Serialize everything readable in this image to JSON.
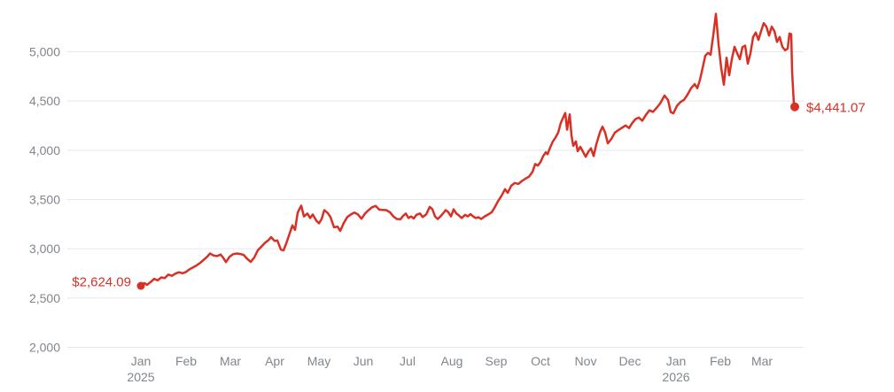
{
  "chart_data": {
    "type": "line",
    "start_label": "$2,624.09",
    "end_label": "$4,441.07",
    "start_value": 2624.09,
    "end_value": 4441.07,
    "line_color": "#d93025",
    "grid_color": "#e7e7e7",
    "axis_text_color": "#80868b",
    "background_color": "#ffffff",
    "ylim": [
      2000,
      5000
    ],
    "grid": true,
    "legend_position": "none",
    "y_ticks": [
      {
        "value": 5000,
        "label": "5,000"
      },
      {
        "value": 4500,
        "label": "4,500"
      },
      {
        "value": 4000,
        "label": "4,000"
      },
      {
        "value": 3500,
        "label": "3,500"
      },
      {
        "value": 3000,
        "label": "3,000"
      },
      {
        "value": 2500,
        "label": "2,500"
      },
      {
        "value": 2000,
        "label": "2,000"
      }
    ],
    "x_ticks": [
      {
        "t": 0,
        "label": "Jan",
        "year": "2025"
      },
      {
        "t": 51,
        "label": "Feb"
      },
      {
        "t": 101,
        "label": "Mar"
      },
      {
        "t": 151,
        "label": "Apr"
      },
      {
        "t": 201,
        "label": "May"
      },
      {
        "t": 251,
        "label": "Jun"
      },
      {
        "t": 301,
        "label": "Jul"
      },
      {
        "t": 351,
        "label": "Aug"
      },
      {
        "t": 401,
        "label": "Sep"
      },
      {
        "t": 451,
        "label": "Oct"
      },
      {
        "t": 502,
        "label": "Nov"
      },
      {
        "t": 552,
        "label": "Dec"
      },
      {
        "t": 604,
        "label": "Jan",
        "year": "2026"
      },
      {
        "t": 654,
        "label": "Feb"
      },
      {
        "t": 701,
        "label": "Mar"
      }
    ],
    "t_range": [
      0,
      738
    ],
    "points": [
      [
        0,
        2624.09
      ],
      [
        4,
        2652
      ],
      [
        7,
        2634
      ],
      [
        11,
        2662
      ],
      [
        15,
        2695
      ],
      [
        19,
        2680
      ],
      [
        23,
        2710
      ],
      [
        27,
        2702
      ],
      [
        31,
        2738
      ],
      [
        35,
        2726
      ],
      [
        39,
        2748
      ],
      [
        43,
        2762
      ],
      [
        47,
        2752
      ],
      [
        51,
        2765
      ],
      [
        55,
        2792
      ],
      [
        59,
        2812
      ],
      [
        63,
        2832
      ],
      [
        67,
        2858
      ],
      [
        71,
        2888
      ],
      [
        75,
        2922
      ],
      [
        78,
        2952
      ],
      [
        82,
        2932
      ],
      [
        86,
        2926
      ],
      [
        90,
        2942
      ],
      [
        93,
        2908
      ],
      [
        96,
        2865
      ],
      [
        100,
        2918
      ],
      [
        104,
        2945
      ],
      [
        108,
        2952
      ],
      [
        112,
        2948
      ],
      [
        116,
        2938
      ],
      [
        120,
        2898
      ],
      [
        124,
        2868
      ],
      [
        128,
        2912
      ],
      [
        132,
        2985
      ],
      [
        136,
        3022
      ],
      [
        140,
        3060
      ],
      [
        144,
        3088
      ],
      [
        147,
        3118
      ],
      [
        151,
        3080
      ],
      [
        154,
        3085
      ],
      [
        158,
        2992
      ],
      [
        161,
        2984
      ],
      [
        164,
        3052
      ],
      [
        167,
        3132
      ],
      [
        171,
        3238
      ],
      [
        174,
        3192
      ],
      [
        177,
        3368
      ],
      [
        181,
        3438
      ],
      [
        184,
        3328
      ],
      [
        188,
        3358
      ],
      [
        191,
        3312
      ],
      [
        194,
        3348
      ],
      [
        198,
        3285
      ],
      [
        201,
        3258
      ],
      [
        204,
        3302
      ],
      [
        207,
        3392
      ],
      [
        211,
        3362
      ],
      [
        214,
        3322
      ],
      [
        218,
        3218
      ],
      [
        222,
        3225
      ],
      [
        225,
        3182
      ],
      [
        229,
        3262
      ],
      [
        233,
        3322
      ],
      [
        237,
        3348
      ],
      [
        241,
        3368
      ],
      [
        245,
        3348
      ],
      [
        249,
        3305
      ],
      [
        253,
        3358
      ],
      [
        257,
        3392
      ],
      [
        261,
        3422
      ],
      [
        265,
        3435
      ],
      [
        269,
        3398
      ],
      [
        273,
        3395
      ],
      [
        277,
        3392
      ],
      [
        281,
        3372
      ],
      [
        285,
        3328
      ],
      [
        289,
        3302
      ],
      [
        293,
        3300
      ],
      [
        296,
        3335
      ],
      [
        299,
        3358
      ],
      [
        302,
        3312
      ],
      [
        305,
        3328
      ],
      [
        308,
        3308
      ],
      [
        311,
        3345
      ],
      [
        315,
        3358
      ],
      [
        318,
        3322
      ],
      [
        322,
        3348
      ],
      [
        326,
        3425
      ],
      [
        329,
        3402
      ],
      [
        332,
        3328
      ],
      [
        335,
        3302
      ],
      [
        338,
        3328
      ],
      [
        341,
        3358
      ],
      [
        344,
        3392
      ],
      [
        347,
        3372
      ],
      [
        350,
        3328
      ],
      [
        353,
        3400
      ],
      [
        356,
        3358
      ],
      [
        359,
        3338
      ],
      [
        362,
        3312
      ],
      [
        366,
        3345
      ],
      [
        369,
        3328
      ],
      [
        372,
        3352
      ],
      [
        375,
        3328
      ],
      [
        378,
        3312
      ],
      [
        381,
        3320
      ],
      [
        384,
        3302
      ],
      [
        388,
        3328
      ],
      [
        392,
        3348
      ],
      [
        396,
        3372
      ],
      [
        399,
        3415
      ],
      [
        403,
        3482
      ],
      [
        407,
        3538
      ],
      [
        411,
        3605
      ],
      [
        414,
        3568
      ],
      [
        418,
        3640
      ],
      [
        422,
        3668
      ],
      [
        426,
        3658
      ],
      [
        430,
        3688
      ],
      [
        434,
        3712
      ],
      [
        438,
        3732
      ],
      [
        442,
        3780
      ],
      [
        445,
        3860
      ],
      [
        448,
        3845
      ],
      [
        451,
        3880
      ],
      [
        454,
        3940
      ],
      [
        457,
        3980
      ],
      [
        459,
        3960
      ],
      [
        462,
        4030
      ],
      [
        465,
        4090
      ],
      [
        468,
        4130
      ],
      [
        471,
        4180
      ],
      [
        474,
        4280
      ],
      [
        477,
        4340
      ],
      [
        479,
        4378
      ],
      [
        481,
        4210
      ],
      [
        484,
        4365
      ],
      [
        486,
        4150
      ],
      [
        488,
        4045
      ],
      [
        491,
        4090
      ],
      [
        493,
        3990
      ],
      [
        496,
        4035
      ],
      [
        499,
        3985
      ],
      [
        502,
        3935
      ],
      [
        505,
        3985
      ],
      [
        508,
        4020
      ],
      [
        511,
        3942
      ],
      [
        514,
        4060
      ],
      [
        518,
        4180
      ],
      [
        521,
        4240
      ],
      [
        524,
        4180
      ],
      [
        527,
        4070
      ],
      [
        531,
        4115
      ],
      [
        535,
        4180
      ],
      [
        539,
        4205
      ],
      [
        543,
        4228
      ],
      [
        547,
        4252
      ],
      [
        551,
        4225
      ],
      [
        554,
        4270
      ],
      [
        558,
        4315
      ],
      [
        562,
        4332
      ],
      [
        566,
        4300
      ],
      [
        570,
        4360
      ],
      [
        574,
        4405
      ],
      [
        578,
        4390
      ],
      [
        582,
        4430
      ],
      [
        586,
        4475
      ],
      [
        591,
        4555
      ],
      [
        595,
        4510
      ],
      [
        598,
        4388
      ],
      [
        601,
        4375
      ],
      [
        605,
        4450
      ],
      [
        609,
        4490
      ],
      [
        613,
        4512
      ],
      [
        617,
        4565
      ],
      [
        621,
        4630
      ],
      [
        625,
        4672
      ],
      [
        628,
        4630
      ],
      [
        631,
        4715
      ],
      [
        634,
        4835
      ],
      [
        637,
        4960
      ],
      [
        640,
        4988
      ],
      [
        643,
        4970
      ],
      [
        646,
        5165
      ],
      [
        649,
        5385
      ],
      [
        652,
        5075
      ],
      [
        655,
        4835
      ],
      [
        658,
        4665
      ],
      [
        661,
        4940
      ],
      [
        664,
        4762
      ],
      [
        667,
        4925
      ],
      [
        670,
        5050
      ],
      [
        673,
        4985
      ],
      [
        676,
        4925
      ],
      [
        679,
        5048
      ],
      [
        682,
        5062
      ],
      [
        685,
        4880
      ],
      [
        688,
        4985
      ],
      [
        691,
        5150
      ],
      [
        694,
        5195
      ],
      [
        697,
        5120
      ],
      [
        700,
        5210
      ],
      [
        703,
        5290
      ],
      [
        706,
        5255
      ],
      [
        709,
        5165
      ],
      [
        712,
        5255
      ],
      [
        715,
        5210
      ],
      [
        718,
        5100
      ],
      [
        721,
        5150
      ],
      [
        724,
        5050
      ],
      [
        727,
        5015
      ],
      [
        730,
        5032
      ],
      [
        732,
        5185
      ],
      [
        734,
        5178
      ],
      [
        735,
        4800
      ],
      [
        737,
        4470
      ],
      [
        738,
        4441.07
      ]
    ]
  }
}
